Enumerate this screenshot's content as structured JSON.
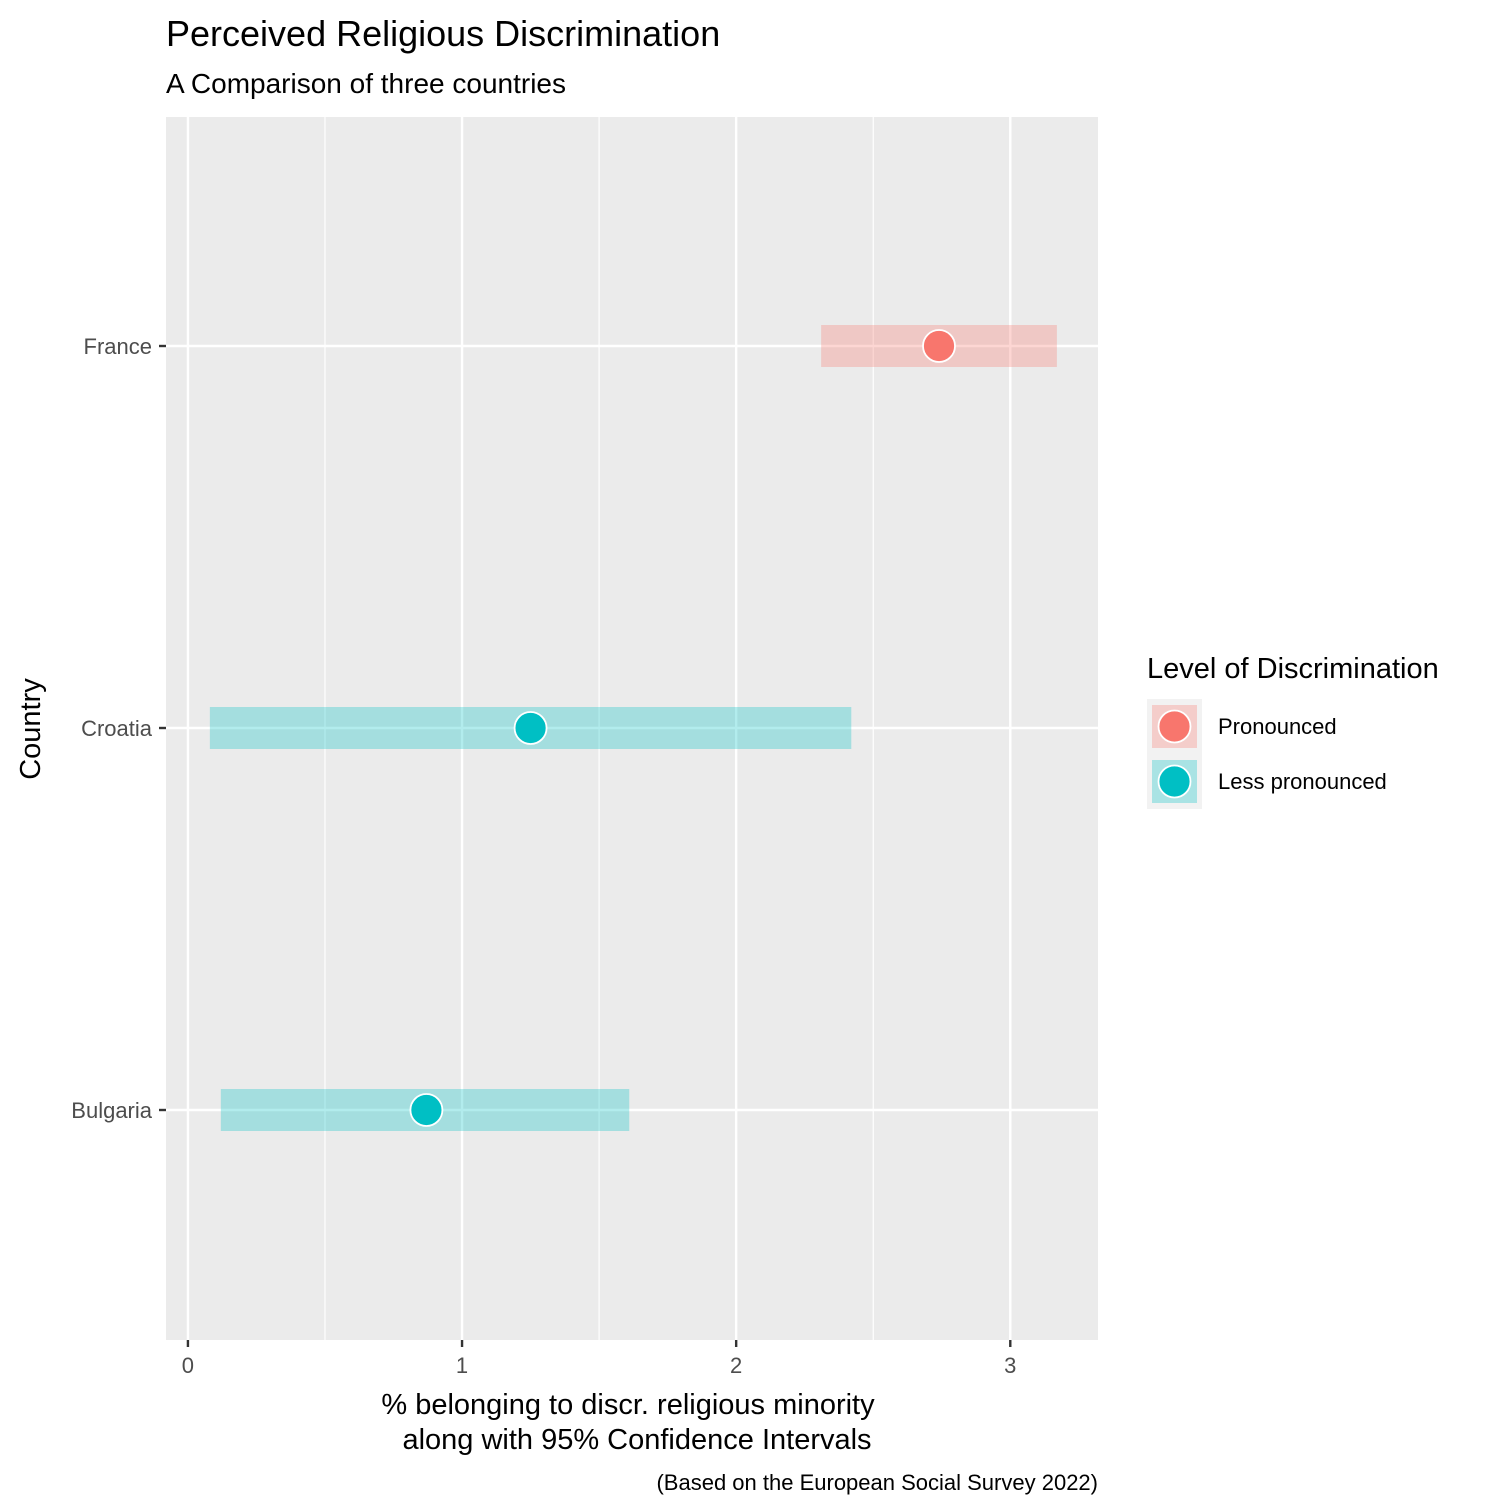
{
  "chart_data": {
    "type": "point-range",
    "title": "Perceived Religious Discrimination",
    "subtitle": "A Comparison of three countries",
    "xlabel_lines": [
      "% belonging to discr. religious minority",
      "along with 95% Confidence Intervals"
    ],
    "ylabel": "Country",
    "caption": "(Based on the European Social Survey 2022)",
    "xlim": [
      -0.08,
      3.32
    ],
    "x_ticks": [
      0,
      1,
      2,
      3
    ],
    "grid": true,
    "categories": [
      "France",
      "Croatia",
      "Bulgaria"
    ],
    "points": [
      {
        "country": "France",
        "value": 2.74,
        "ci_low": 2.31,
        "ci_high": 3.17,
        "level": "Pronounced"
      },
      {
        "country": "Croatia",
        "value": 1.25,
        "ci_low": 0.08,
        "ci_high": 2.42,
        "level": "Less pronounced"
      },
      {
        "country": "Bulgaria",
        "value": 0.87,
        "ci_low": 0.12,
        "ci_high": 1.61,
        "level": "Less pronounced"
      }
    ],
    "legend": {
      "title": "Level of Discrimination",
      "placement": "right",
      "items": [
        {
          "label": "Pronounced",
          "color": "#F8766D"
        },
        {
          "label": "Less pronounced",
          "color": "#00BFC4"
        }
      ]
    }
  }
}
